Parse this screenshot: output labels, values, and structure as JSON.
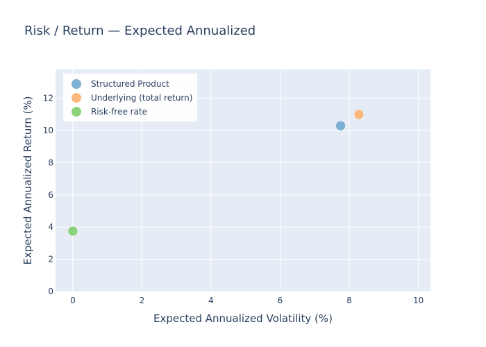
{
  "chart_data": {
    "type": "scatter",
    "title": "Risk / Return — Expected Annualized",
    "xlabel": "Expected Annualized Volatility (%)",
    "ylabel": "Expected Annualized Return (%)",
    "xlim": [
      -0.5,
      10.35
    ],
    "ylim": [
      0,
      13.8
    ],
    "x_ticks": [
      0,
      2,
      4,
      6,
      8,
      10
    ],
    "y_ticks": [
      0,
      2,
      4,
      6,
      8,
      10,
      12
    ],
    "grid": true,
    "legend_position": "top-left",
    "plot_background": "#e5ecf6",
    "series": [
      {
        "name": "Structured Product",
        "color": "#7eb0d5",
        "x": [
          7.75
        ],
        "y": [
          10.3
        ]
      },
      {
        "name": "Underlying (total return)",
        "color": "#fdb97d",
        "x": [
          8.28
        ],
        "y": [
          11.0
        ]
      },
      {
        "name": "Risk-free rate",
        "color": "#8bd17c",
        "x": [
          0.0
        ],
        "y": [
          3.75
        ]
      }
    ]
  }
}
